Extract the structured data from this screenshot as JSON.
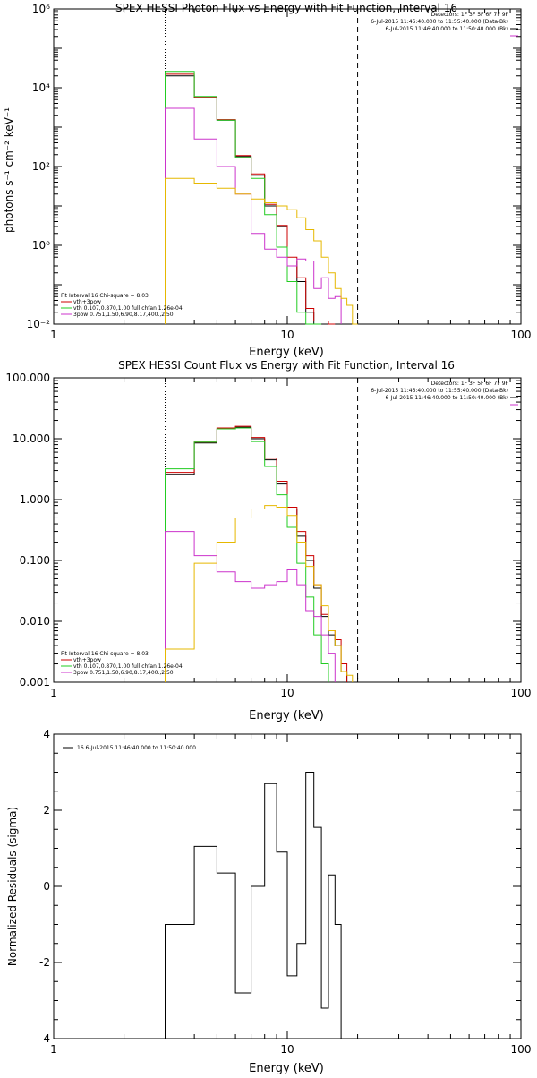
{
  "chart_data": [
    {
      "type": "line",
      "step": true,
      "title": "SPEX HESSI Photon Flux vs Energy with Fit Function, Interval 16",
      "xlabel": "Energy (keV)",
      "ylabel": "photons s⁻¹ cm⁻² keV⁻¹",
      "xscale": "log",
      "yscale": "log",
      "xlim": [
        1,
        100
      ],
      "ylim": [
        0.01,
        1000000
      ],
      "xticks": [
        1,
        10,
        100
      ],
      "xtick_labels": [
        "1",
        "10",
        "100"
      ],
      "yticks": [
        0.01,
        1,
        100,
        10000,
        1000000
      ],
      "ytick_labels": [
        "10⁻²",
        "10⁰",
        "10²",
        "10⁴",
        "10⁶"
      ],
      "vlines": [
        {
          "x": 3,
          "style": "dotted"
        },
        {
          "x": 20,
          "style": "dashed"
        }
      ],
      "header_lines": [
        "Detectors: 1F 3F 5F 6F 7F 9F",
        "6-Jul-2015 11:46:40.000 to 11:55:40.000 (Data-Bk)",
        "6-Jul-2015 11:46:40.000 to 11:50:40.000 (Bk)"
      ],
      "fit_lines": [
        "Fit Interval 16   Chi-square = 8.03",
        "vth+3pow",
        "vth 0.107,0.870,1.00  full chfan 1.26e-04",
        "3pow 0.751,1.50,6.90,8.17,400.,2.50"
      ],
      "bin_edges": [
        3,
        4,
        5,
        6,
        7,
        8,
        9,
        10,
        11,
        12,
        13,
        14,
        15,
        16,
        17,
        18,
        19,
        20,
        22
      ],
      "series": [
        {
          "color": "#000000",
          "values": [
            20000,
            5500,
            1500,
            180,
            60,
            10,
            3,
            0.4,
            0.12,
            0.02,
            0.009,
            0.01,
            0.005
          ]
        },
        {
          "color": "#cc0000",
          "values": [
            22000,
            5800,
            1550,
            190,
            65,
            11,
            3.2,
            0.5,
            0.15,
            0.025,
            0.012,
            0.012,
            0.006
          ]
        },
        {
          "color": "#22cc22",
          "values": [
            26000,
            6000,
            1500,
            170,
            50,
            6,
            0.9,
            0.12,
            0.02,
            0.008,
            0.003
          ]
        },
        {
          "color": "#cc33cc",
          "values": [
            3000,
            500,
            100,
            20,
            2,
            0.8,
            0.5,
            0.3,
            0.45,
            0.4,
            0.08,
            0.15,
            0.045,
            0.05
          ]
        },
        {
          "color": "#e6b800",
          "values": [
            50,
            38,
            28,
            20,
            15,
            12,
            10,
            8,
            5,
            2.5,
            1.3,
            0.5,
            0.2,
            0.08,
            0.045,
            0.03,
            0.01
          ]
        }
      ]
    },
    {
      "type": "line",
      "step": true,
      "title": "SPEX HESSI Count Flux vs Energy with Fit Function, Interval 16",
      "xlabel": "Energy (keV)",
      "ylabel": "",
      "xscale": "log",
      "yscale": "log",
      "xlim": [
        1,
        100
      ],
      "ylim": [
        0.001,
        100
      ],
      "xticks": [
        1,
        10,
        100
      ],
      "xtick_labels": [
        "1",
        "10",
        "100"
      ],
      "yticks": [
        0.001,
        0.01,
        0.1,
        1,
        10,
        100
      ],
      "ytick_labels": [
        "0.001",
        "0.010",
        "0.100",
        "1.000",
        "10.000",
        "100.000"
      ],
      "vlines": [
        {
          "x": 3,
          "style": "dotted"
        },
        {
          "x": 20,
          "style": "dashed"
        }
      ],
      "header_lines": [
        "Detectors: 1F 3F 5F 6F 7F 9F",
        "6-Jul-2015 11:46:40.000 to 11:55:40.000 (Data-Bk)",
        "6-Jul-2015 11:46:40.000 to 11:50:40.000 (Bk)"
      ],
      "fit_lines": [
        "Fit Interval 16   Chi-square = 8.03",
        "vth+3pow",
        "vth 0.107,0.870,1.00  full chfan 1.26e-04",
        "3pow 0.751,1.50,6.90,8.17,400.,2.50"
      ],
      "bin_edges": [
        3,
        4,
        5,
        6,
        7,
        8,
        9,
        10,
        11,
        12,
        13,
        14,
        15,
        16,
        17,
        18,
        19,
        20,
        22
      ],
      "series": [
        {
          "color": "#000000",
          "values": [
            2.6,
            8.5,
            14.5,
            15.5,
            10,
            4.5,
            1.8,
            0.7,
            0.25,
            0.1,
            0.035,
            0.012,
            0.006,
            0.004,
            0.0015
          ]
        },
        {
          "color": "#cc0000",
          "values": [
            2.8,
            8.8,
            15,
            16,
            10.5,
            4.8,
            2,
            0.75,
            0.3,
            0.12,
            0.04,
            0.013,
            0.007,
            0.005,
            0.002
          ]
        },
        {
          "color": "#22cc22",
          "values": [
            3.2,
            8.8,
            14.5,
            15,
            9,
            3.5,
            1.2,
            0.35,
            0.09,
            0.025,
            0.006,
            0.002
          ]
        },
        {
          "color": "#cc33cc",
          "values": [
            0.3,
            0.12,
            0.065,
            0.045,
            0.035,
            0.04,
            0.045,
            0.07,
            0.04,
            0.015,
            0.012,
            0.006,
            0.003
          ]
        },
        {
          "color": "#e6b800",
          "values": [
            0.0035,
            0.09,
            0.2,
            0.5,
            0.7,
            0.8,
            0.75,
            0.55,
            0.2,
            0.08,
            0.04,
            0.018,
            0.007,
            0.004,
            0.0015,
            0.0013
          ]
        }
      ]
    },
    {
      "type": "line",
      "step": true,
      "title": "",
      "xlabel": "Energy (keV)",
      "ylabel": "Normalized Residuals (sigma)",
      "xscale": "log",
      "yscale": "linear",
      "xlim": [
        1,
        100
      ],
      "ylim": [
        -4,
        4
      ],
      "xticks": [
        1,
        10,
        100
      ],
      "xtick_labels": [
        "1",
        "10",
        "100"
      ],
      "yticks": [
        -4,
        -2,
        0,
        2,
        4
      ],
      "ytick_labels": [
        "-4",
        "-2",
        "0",
        "2",
        "4"
      ],
      "legend_text": "16  6-Jul-2015 11:46:40.000 to 11:50:40.000",
      "bin_edges": [
        3,
        4,
        5,
        6,
        7,
        8,
        9,
        10,
        11,
        12,
        13,
        14,
        15,
        16,
        17,
        18,
        19,
        20
      ],
      "series": [
        {
          "color": "#000000",
          "values": [
            -1.0,
            1.05,
            0.35,
            -2.8,
            0.0,
            2.7,
            0.9,
            -2.35,
            -1.5,
            3.0,
            1.55,
            -3.2,
            0.3,
            -1.0
          ]
        }
      ]
    }
  ]
}
